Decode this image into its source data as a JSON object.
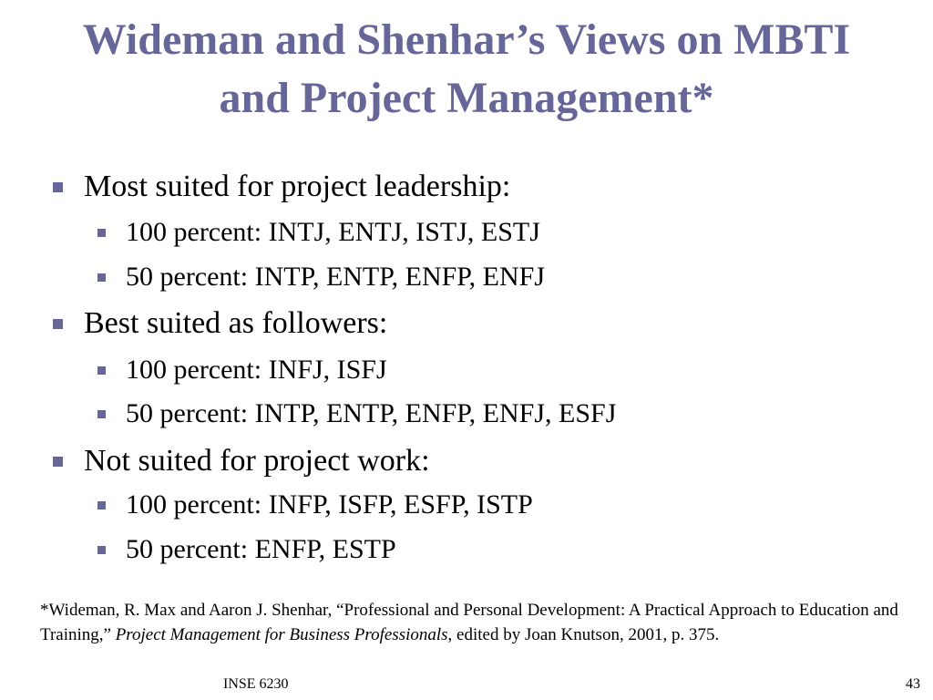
{
  "slide": {
    "title_line1": "Wideman and Shenhar’s Views on MBTI",
    "title_line2": "and Project Management*",
    "bullets": [
      {
        "level": 1,
        "text": "Most suited for project leadership:"
      },
      {
        "level": 2,
        "text": "100 percent: INTJ, ENTJ, ISTJ, ESTJ"
      },
      {
        "level": 2,
        "text": "50 percent: INTP, ENTP, ENFP, ENFJ"
      },
      {
        "level": 1,
        "text": "Best suited as followers:"
      },
      {
        "level": 2,
        "text": "100 percent: INFJ, ISFJ"
      },
      {
        "level": 2,
        "text": "50 percent: INTP, ENTP, ENFP, ENFJ, ESFJ"
      },
      {
        "level": 1,
        "text": "Not suited for project work:"
      },
      {
        "level": 2,
        "text": "100 percent: INFP, ISFP, ESFP, ISTP"
      },
      {
        "level": 2,
        "text": "50 percent: ENFP, ESTP"
      }
    ],
    "footnote": {
      "part1": "*Wideman, R. Max and Aaron J. Shenhar, “Professional and Personal Development: A Practical Approach to Education and Training,” ",
      "italic": "Project Management for Business Professionals",
      "part2": ", edited by Joan Knutson, 2001, p. 375."
    },
    "footer_left": "INSE 6230",
    "slide_number": "43",
    "colors": {
      "title": "#666699",
      "bullet_marker": "#666699",
      "text": "#000000"
    }
  }
}
